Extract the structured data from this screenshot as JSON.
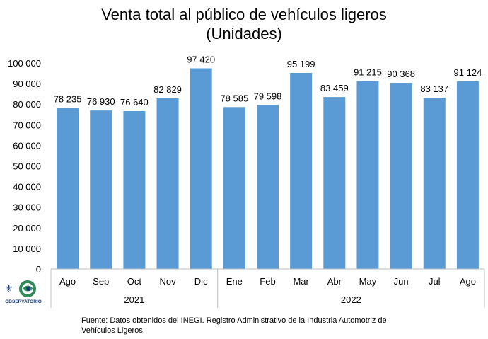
{
  "title": {
    "line1": "Venta total al público de vehículos ligeros",
    "line2": "(Unidades)"
  },
  "source": "Fuente: Datos obtenidos del INEGI. Registro Administrativo de la Industria Automotriz de Vehículos Ligeros.",
  "logo": {
    "text": "OBSERVATORIO"
  },
  "colors": {
    "bar": "#5b9bd5",
    "axis": "#bfbfbf"
  },
  "chart_data": {
    "type": "bar",
    "categories": [
      "Ago",
      "Sep",
      "Oct",
      "Nov",
      "Dic",
      "Ene",
      "Feb",
      "Mar",
      "Abr",
      "May",
      "Jun",
      "Jul",
      "Ago"
    ],
    "groups": [
      {
        "label": "2021",
        "count": 5
      },
      {
        "label": "2022",
        "count": 8
      }
    ],
    "values": [
      78235,
      76930,
      76640,
      82829,
      97420,
      78585,
      79598,
      95199,
      83459,
      91215,
      90368,
      83137,
      91124
    ],
    "data_labels": [
      "78 235",
      "76 930",
      "76 640",
      "82 829",
      "97 420",
      "78 585",
      "79 598",
      "95 199",
      "83 459",
      "91 215",
      "90 368",
      "83 137",
      "91 124"
    ],
    "ylim": [
      0,
      100000
    ],
    "yticks": [
      0,
      10000,
      20000,
      30000,
      40000,
      50000,
      60000,
      70000,
      80000,
      90000,
      100000
    ],
    "ytick_labels": [
      "0",
      "10 000",
      "20 000",
      "30 000",
      "40 000",
      "50 000",
      "60 000",
      "70 000",
      "80 000",
      "90 000",
      "100 000"
    ],
    "grid": false,
    "legend": "none"
  }
}
